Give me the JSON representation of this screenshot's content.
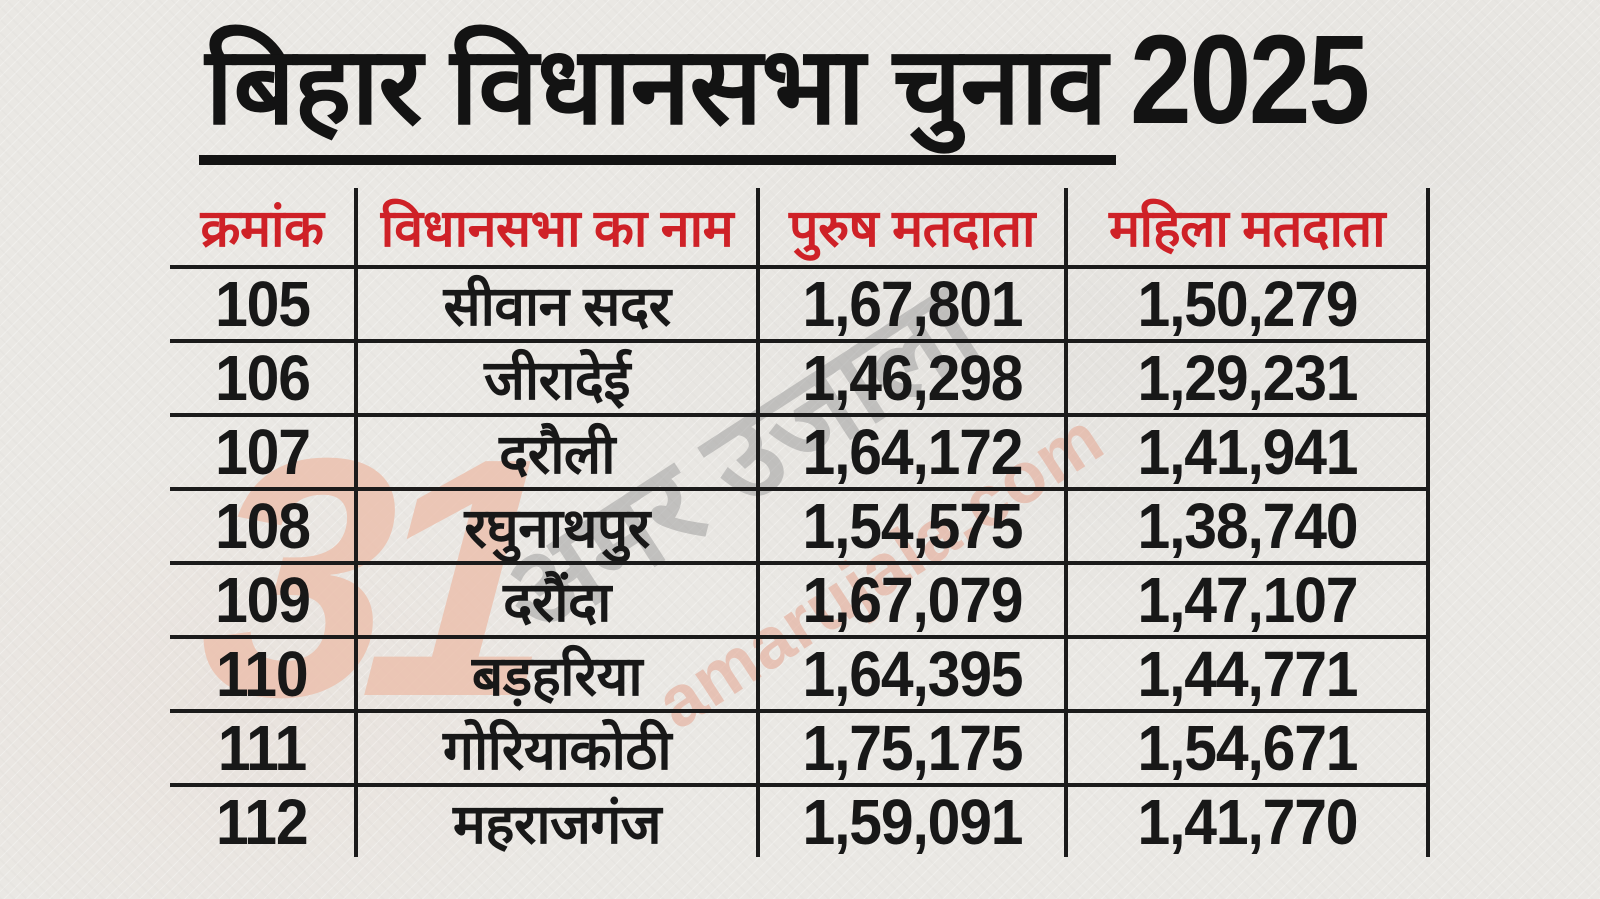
{
  "title": {
    "underlined": "बिहार विधानसभा चुनाव",
    "year": "2025"
  },
  "watermark": {
    "logo_text": "31",
    "brand_hindi": "अमर उजाला",
    "brand_domain": "amarujala.com",
    "logo_color": "#ecc2b0",
    "hindi_color": "#9d9d9d",
    "domain_color": "#e5ac99"
  },
  "colors": {
    "background": "#eae8e4",
    "title_text": "#131313",
    "header_text": "#cf2127",
    "body_text": "#181818",
    "grid_lines": "#1b1b1b"
  },
  "table": {
    "headers": [
      "क्रमांक",
      "विधानसभा का नाम",
      "पुरुष मतदाता",
      "महिला मतदाता"
    ],
    "rows": [
      {
        "serial": "105",
        "name": "सीवान सदर",
        "male": "1,67,801",
        "female": "1,50,279"
      },
      {
        "serial": "106",
        "name": "जीरादेई",
        "male": "1,46,298",
        "female": "1,29,231"
      },
      {
        "serial": "107",
        "name": "दरौली",
        "male": "1,64,172",
        "female": "1,41,941"
      },
      {
        "serial": "108",
        "name": "रघुनाथपुर",
        "male": "1,54,575",
        "female": "1,38,740"
      },
      {
        "serial": "109",
        "name": "दरौंदा",
        "male": "1,67,079",
        "female": "1,47,107"
      },
      {
        "serial": "110",
        "name": "बड़हरिया",
        "male": "1,64,395",
        "female": "1,44,771"
      },
      {
        "serial": "111",
        "name": "गोरियाकोठी",
        "male": "1,75,175",
        "female": "1,54,671"
      },
      {
        "serial": "112",
        "name": "महराजगंज",
        "male": "1,59,091",
        "female": "1,41,770"
      }
    ]
  },
  "chart_data": {
    "type": "table",
    "title": "बिहार विधानसभा चुनाव 2025",
    "columns": [
      "क्रमांक",
      "विधानसभा का नाम",
      "पुरुष मतदाता",
      "महिला मतदाता"
    ],
    "rows": [
      [
        "105",
        "सीवान सदर",
        "1,67,801",
        "1,50,279"
      ],
      [
        "106",
        "जीरादेई",
        "1,46,298",
        "1,29,231"
      ],
      [
        "107",
        "दरौली",
        "1,64,172",
        "1,41,941"
      ],
      [
        "108",
        "रघुनाथपुर",
        "1,54,575",
        "1,38,740"
      ],
      [
        "109",
        "दरौंदा",
        "1,67,079",
        "1,47,107"
      ],
      [
        "110",
        "बड़हरिया",
        "1,64,395",
        "1,44,771"
      ],
      [
        "111",
        "गोरियाकोठी",
        "1,75,175",
        "1,54,671"
      ],
      [
        "112",
        "महराजगंज",
        "1,59,091",
        "1,41,770"
      ]
    ],
    "male_voters_numeric": [
      167801,
      146298,
      164172,
      154575,
      167079,
      164395,
      175175,
      159091
    ],
    "female_voters_numeric": [
      150279,
      129231,
      141941,
      138740,
      147107,
      144771,
      154671,
      141770
    ]
  }
}
